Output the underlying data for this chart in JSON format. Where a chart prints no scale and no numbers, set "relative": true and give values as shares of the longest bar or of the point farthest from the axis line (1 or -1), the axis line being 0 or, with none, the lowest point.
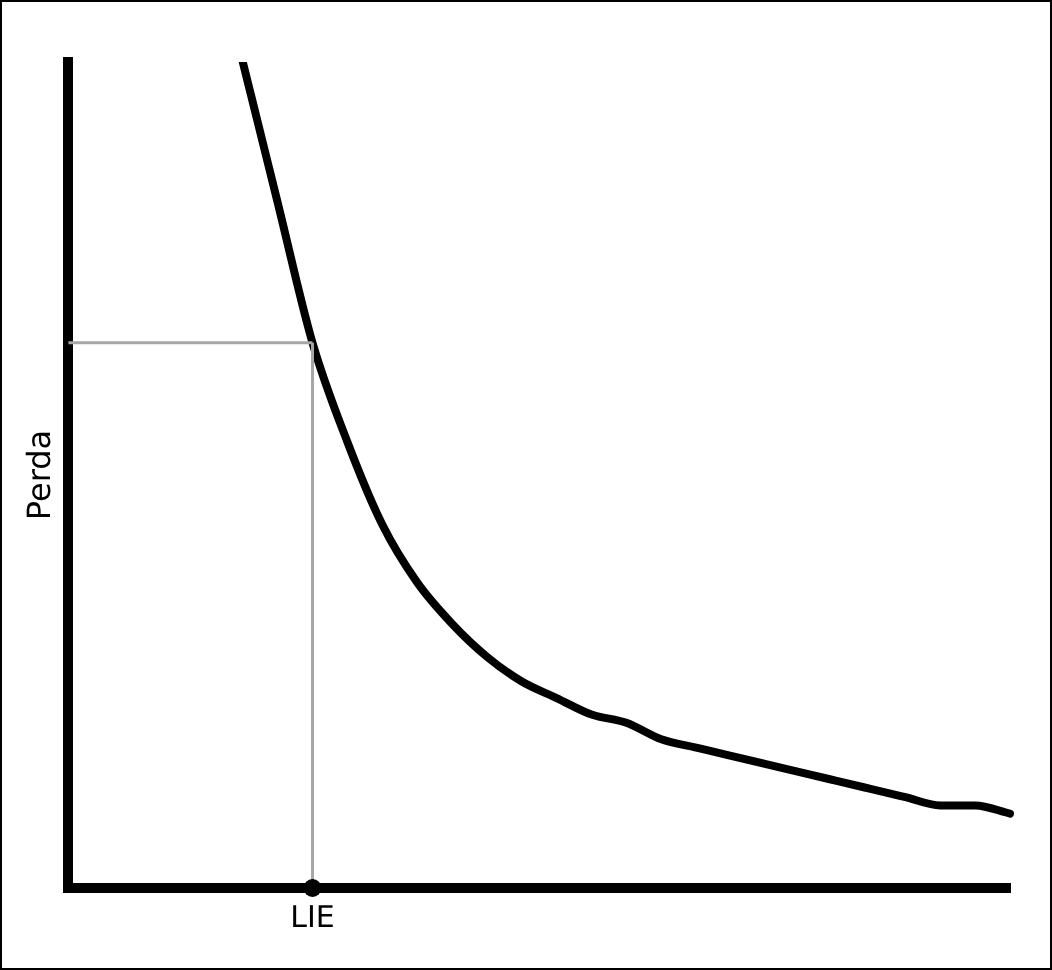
{
  "chart_data": {
    "type": "line",
    "relative": true,
    "ylabel": "Perda",
    "categories": [
      null,
      null,
      null,
      null,
      null,
      null,
      null,
      null,
      null,
      null,
      null,
      null,
      null,
      null,
      null,
      null,
      null,
      null,
      null,
      null,
      null,
      null,
      null,
      null,
      null,
      null,
      null,
      null
    ],
    "series": [
      {
        "color": "#000000",
        "values": [
          null,
          null,
          null,
          null,
          null,
          1.0,
          0.83,
          0.66,
          0.54,
          0.44,
          0.37,
          0.32,
          0.28,
          0.25,
          0.23,
          0.21,
          0.2,
          0.18,
          0.17,
          0.16,
          0.15,
          0.14,
          0.13,
          0.12,
          0.11,
          0.1,
          0.1,
          0.09
        ]
      }
    ],
    "ref_lines": [
      {
        "axis": "y",
        "value": 0.66,
        "color": "#a6a6a6"
      }
    ],
    "annotations": [
      "LIE"
    ],
    "grid": false,
    "legend": false,
    "marker": "none",
    "line_style": "solid"
  }
}
